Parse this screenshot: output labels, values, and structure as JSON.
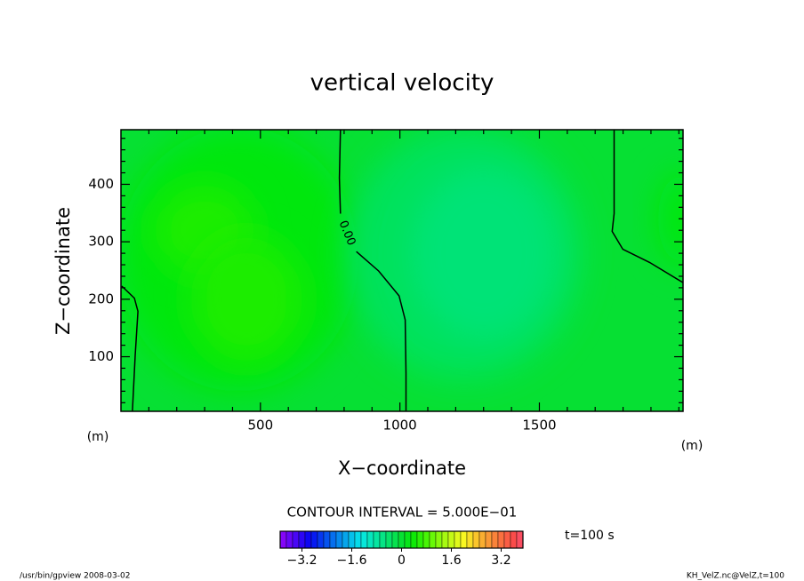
{
  "chart_data": {
    "type": "contour",
    "title": "vertical velocity",
    "x_label": "X−coordinate",
    "y_label": "Z−coordinate",
    "x_unit": "(m)",
    "y_unit": "(m)",
    "xlim": [
      0,
      2015
    ],
    "ylim": [
      5,
      495
    ],
    "xticks": [
      500,
      1000,
      1500
    ],
    "yticks": [
      100,
      200,
      300,
      400
    ],
    "xminorticks": [
      100,
      200,
      300,
      400,
      600,
      700,
      800,
      900,
      1100,
      1200,
      1300,
      1400,
      1600,
      1700,
      1800,
      1900,
      2000
    ],
    "yminorticks": [
      20,
      40,
      60,
      80,
      120,
      140,
      160,
      180,
      220,
      240,
      260,
      280,
      320,
      340,
      360,
      380,
      420,
      440,
      460,
      480
    ],
    "field_base": 0,
    "field_features": [
      {
        "x": 420,
        "z": 270,
        "rx": 430,
        "rz": 230,
        "value": 0.3
      },
      {
        "x": 300,
        "z": 320,
        "rx": 180,
        "rz": 80,
        "value": 0.5
      },
      {
        "x": 450,
        "z": 200,
        "rx": 200,
        "rz": 110,
        "value": 0.5
      },
      {
        "x": 1230,
        "z": 280,
        "rx": 420,
        "rz": 220,
        "value": -0.3
      },
      {
        "x": 1300,
        "z": 280,
        "rx": 260,
        "rz": 150,
        "value": -0.5
      },
      {
        "x": 2015,
        "z": 340,
        "rx": 90,
        "rz": 80,
        "value": 0.3
      }
    ],
    "contour": {
      "level": {
        "value": 0,
        "label": "0.00"
      },
      "label_x": 810,
      "label_z": 315,
      "x": [
        3,
        48,
        61,
        51,
        41,
        null,
        787,
        783,
        787,
        null,
        844,
        924,
        997,
        1019,
        1022,
        1022,
        null,
        1768,
        1768,
        1761,
        1799,
        1895,
        2015
      ],
      "z": [
        223,
        202,
        179,
        102,
        6,
        null,
        495,
        411,
        349,
        null,
        283,
        249,
        206,
        164,
        71,
        6,
        null,
        495,
        349,
        318,
        287,
        264,
        229
      ]
    },
    "contour_interval_text": "CONTOUR INTERVAL = 5.000E−01",
    "time_text": "t=100 s",
    "colorbar": {
      "lim": [
        -3.9,
        3.9
      ],
      "levels": [
        -3.9,
        -3.7,
        -3.5,
        -3.3,
        -3.1,
        -2.9,
        -2.7,
        -2.5,
        -2.3,
        -2.1,
        -1.9,
        -1.7,
        -1.5,
        -1.3,
        -1.1,
        -0.9,
        -0.7,
        -0.5,
        -0.3,
        -0.1,
        0.1,
        0.3,
        0.5,
        0.7,
        0.9,
        1.1,
        1.3,
        1.5,
        1.7,
        1.9,
        2.1,
        2.3,
        2.5,
        2.7,
        2.9,
        3.1,
        3.3,
        3.5,
        3.7,
        3.9
      ],
      "ticks": [
        {
          "value": -3.2,
          "label": "−3.2"
        },
        {
          "value": -1.6,
          "label": "−1.6"
        },
        0,
        1.6,
        3.2
      ]
    },
    "footer_left": "/usr/bin/gpview   2008-03-02",
    "footer_right": "KH_VelZ.nc@VelZ,t=100"
  }
}
